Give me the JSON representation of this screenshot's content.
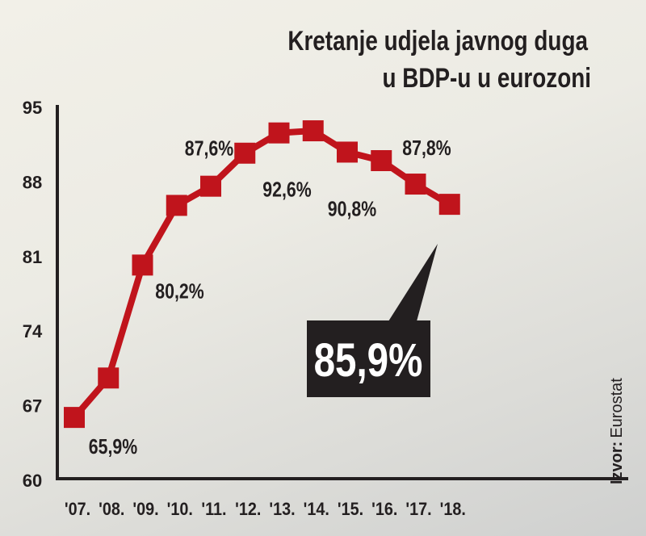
{
  "chart_data": {
    "type": "line",
    "title": "Kretanje udjela javnog duga u BDP-u u eurozoni",
    "title_lines": [
      "Kretanje udjela javnog duga",
      "u BDP-u u eurozoni"
    ],
    "categories": [
      "'07.",
      "'08.",
      "'09.",
      "'10.",
      "'11.",
      "'12.",
      "'13.",
      "'14.",
      "'15.",
      "'16.",
      "'17.",
      "'18."
    ],
    "values": [
      65.9,
      69.6,
      80.2,
      85.8,
      87.6,
      90.7,
      92.6,
      92.8,
      90.8,
      90.0,
      87.8,
      85.9
    ],
    "data_labels": [
      {
        "index": 0,
        "text": "65,9%"
      },
      {
        "index": 2,
        "text": "80,2%"
      },
      {
        "index": 4,
        "text": "87,6%"
      },
      {
        "index": 6,
        "text": "92,6%"
      },
      {
        "index": 8,
        "text": "90,8%"
      },
      {
        "index": 10,
        "text": "87,8%"
      }
    ],
    "highlight": {
      "index": 11,
      "text": "85,9%"
    },
    "yticks": [
      95,
      88,
      81,
      74,
      67,
      60
    ],
    "ylim": [
      60,
      95
    ],
    "grid": false,
    "source_label": "Izvor:",
    "source_value": "Eurostat",
    "colors": {
      "line": "#c0141c",
      "callout": "#231f20",
      "text": "#231f20"
    }
  }
}
